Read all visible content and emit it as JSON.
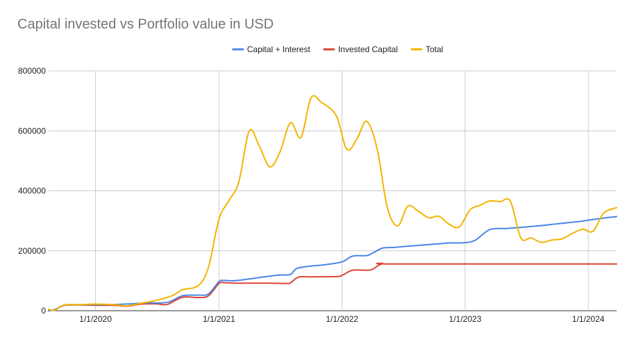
{
  "chart_data": {
    "type": "line",
    "title": "Capital invested vs Portfolio value in USD",
    "xlabel": "",
    "ylabel": "",
    "legend_position": "top",
    "grid": true,
    "x_range": [
      "2019-08-15",
      "2024-03-25"
    ],
    "ylim": [
      0,
      800000
    ],
    "y_ticks": [
      0,
      200000,
      400000,
      600000,
      800000
    ],
    "y_tick_labels": [
      "0",
      "200000",
      "400000",
      "600000",
      "800000"
    ],
    "x_ticks": [
      "2020-01-01",
      "2021-01-01",
      "2022-01-01",
      "2023-01-01",
      "2024-01-01"
    ],
    "x_tick_labels": [
      "1/1/2020",
      "1/1/2021",
      "1/1/2022",
      "1/1/2023",
      "1/1/2024"
    ],
    "series": [
      {
        "name": "Capital + Interest",
        "color": "#4a86e8",
        "points": [
          [
            "2019-08-15",
            0
          ],
          [
            "2019-09-01",
            3000
          ],
          [
            "2019-10-01",
            19000
          ],
          [
            "2019-11-15",
            20000
          ],
          [
            "2020-01-01",
            20000
          ],
          [
            "2020-03-01",
            21000
          ],
          [
            "2020-04-15",
            23000
          ],
          [
            "2020-06-01",
            26000
          ],
          [
            "2020-08-01",
            28000
          ],
          [
            "2020-09-15",
            50000
          ],
          [
            "2020-11-01",
            52000
          ],
          [
            "2020-12-01",
            56000
          ],
          [
            "2021-01-01",
            97000
          ],
          [
            "2021-01-15",
            101000
          ],
          [
            "2021-02-15",
            100000
          ],
          [
            "2021-04-01",
            106000
          ],
          [
            "2021-05-15",
            113000
          ],
          [
            "2021-07-01",
            119000
          ],
          [
            "2021-08-01",
            121000
          ],
          [
            "2021-08-20",
            141000
          ],
          [
            "2021-10-01",
            149000
          ],
          [
            "2021-11-15",
            154000
          ],
          [
            "2022-01-01",
            163000
          ],
          [
            "2022-02-01",
            182000
          ],
          [
            "2022-03-15",
            184000
          ],
          [
            "2022-04-01",
            192000
          ],
          [
            "2022-05-01",
            209000
          ],
          [
            "2022-06-01",
            211000
          ],
          [
            "2022-07-01",
            214000
          ],
          [
            "2022-08-15",
            218000
          ],
          [
            "2022-10-01",
            222000
          ],
          [
            "2022-11-15",
            226000
          ],
          [
            "2023-01-01",
            227000
          ],
          [
            "2023-02-01",
            236000
          ],
          [
            "2023-03-15",
            271000
          ],
          [
            "2023-05-01",
            274000
          ],
          [
            "2023-06-15",
            278000
          ],
          [
            "2023-08-15",
            284000
          ],
          [
            "2023-10-01",
            290000
          ],
          [
            "2023-12-01",
            297000
          ],
          [
            "2024-01-01",
            302000
          ],
          [
            "2024-02-15",
            309000
          ],
          [
            "2024-03-25",
            314000
          ]
        ]
      },
      {
        "name": "Invested Capital",
        "color": "#db4437",
        "points": [
          [
            "2019-08-15",
            0
          ],
          [
            "2019-09-01",
            3000
          ],
          [
            "2019-10-01",
            18000
          ],
          [
            "2019-11-15",
            19000
          ],
          [
            "2020-01-01",
            18000
          ],
          [
            "2020-03-01",
            18000
          ],
          [
            "2020-04-01",
            15000
          ],
          [
            "2020-05-15",
            22000
          ],
          [
            "2020-07-01",
            23000
          ],
          [
            "2020-08-01",
            21000
          ],
          [
            "2020-09-15",
            45000
          ],
          [
            "2020-11-01",
            44000
          ],
          [
            "2020-12-01",
            50000
          ],
          [
            "2021-01-01",
            91000
          ],
          [
            "2021-01-15",
            94000
          ],
          [
            "2021-02-15",
            92000
          ],
          [
            "2021-06-01",
            92000
          ],
          [
            "2021-07-20",
            91000
          ],
          [
            "2021-08-01",
            93000
          ],
          [
            "2021-08-25",
            112000
          ],
          [
            "2021-10-01",
            113000
          ],
          [
            "2021-12-15",
            114000
          ],
          [
            "2022-01-01",
            118000
          ],
          [
            "2022-02-01",
            135000
          ],
          [
            "2022-03-15",
            135000
          ],
          [
            "2022-04-01",
            138000
          ],
          [
            "2022-05-01",
            157000
          ],
          [
            "2022-06-15",
            156000
          ],
          [
            "2024-03-25",
            156000
          ]
        ]
      },
      {
        "name": "Total",
        "color": "#f4b400",
        "points": [
          [
            "2019-08-15",
            5000
          ],
          [
            "2019-09-01",
            1000
          ],
          [
            "2019-10-01",
            19000
          ],
          [
            "2019-11-15",
            20000
          ],
          [
            "2020-01-01",
            22000
          ],
          [
            "2020-03-01",
            20000
          ],
          [
            "2020-04-01",
            16000
          ],
          [
            "2020-05-15",
            25000
          ],
          [
            "2020-07-01",
            35000
          ],
          [
            "2020-08-15",
            50000
          ],
          [
            "2020-09-15",
            70000
          ],
          [
            "2020-11-01",
            84000
          ],
          [
            "2020-12-01",
            145000
          ],
          [
            "2021-01-01",
            305000
          ],
          [
            "2021-02-01",
            370000
          ],
          [
            "2021-03-01",
            430000
          ],
          [
            "2021-04-01",
            600000
          ],
          [
            "2021-05-01",
            548000
          ],
          [
            "2021-06-01",
            480000
          ],
          [
            "2021-07-01",
            530000
          ],
          [
            "2021-08-01",
            627000
          ],
          [
            "2021-09-01",
            578000
          ],
          [
            "2021-10-01",
            710000
          ],
          [
            "2021-11-01",
            695000
          ],
          [
            "2021-12-15",
            650000
          ],
          [
            "2022-01-15",
            538000
          ],
          [
            "2022-02-15",
            575000
          ],
          [
            "2022-03-15",
            632000
          ],
          [
            "2022-04-15",
            540000
          ],
          [
            "2022-05-15",
            345000
          ],
          [
            "2022-06-15",
            283000
          ],
          [
            "2022-07-15",
            349000
          ],
          [
            "2022-08-15",
            332000
          ],
          [
            "2022-09-15",
            310000
          ],
          [
            "2022-10-15",
            315000
          ],
          [
            "2022-11-15",
            288000
          ],
          [
            "2022-12-15",
            280000
          ],
          [
            "2023-01-15",
            336000
          ],
          [
            "2023-02-15",
            352000
          ],
          [
            "2023-03-15",
            366000
          ],
          [
            "2023-04-15",
            364000
          ],
          [
            "2023-05-15",
            365000
          ],
          [
            "2023-06-15",
            243000
          ],
          [
            "2023-07-15",
            243000
          ],
          [
            "2023-08-15",
            228000
          ],
          [
            "2023-09-15",
            236000
          ],
          [
            "2023-10-15",
            240000
          ],
          [
            "2023-11-15",
            258000
          ],
          [
            "2023-12-15",
            272000
          ],
          [
            "2024-01-15",
            265000
          ],
          [
            "2024-02-15",
            325000
          ],
          [
            "2024-03-25",
            344000
          ]
        ]
      }
    ]
  }
}
